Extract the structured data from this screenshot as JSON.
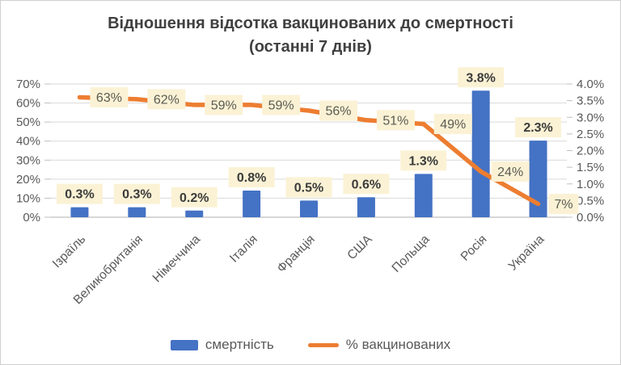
{
  "title": {
    "line1": "Відношення відсотка вакцинованих до смертності",
    "line2": "(останні 7 днів)"
  },
  "legend": {
    "bar_label": "смертність",
    "line_label": "% вакцинованих"
  },
  "colors": {
    "bar": "#4472C4",
    "line": "#ED7D31",
    "label_bg": "#FBF2D5",
    "grid": "#D9D9D9",
    "axis_line": "#BFBFBF",
    "tick_text": "#595959",
    "bar_label_text": "#3B3B3B",
    "line_label_text": "#5A5A52"
  },
  "chart_data": {
    "type": "combo-bar-line",
    "title": "Відношення відсотка вакцинованих до смертності (останні 7 днів)",
    "categories": [
      "Ізраїль",
      "Великобританія",
      "Німеччина",
      "Італія",
      "Франція",
      "США",
      "Польща",
      "Росія",
      "Україна"
    ],
    "series": [
      {
        "name": "смертність",
        "type": "bar",
        "axis": "right",
        "color": "#4472C4",
        "values": [
          0.3,
          0.3,
          0.2,
          0.8,
          0.5,
          0.6,
          1.3,
          3.8,
          2.3
        ],
        "labels": [
          "0.3%",
          "0.3%",
          "0.2%",
          "0.8%",
          "0.5%",
          "0.6%",
          "1.3%",
          "3.8%",
          "2.3%"
        ]
      },
      {
        "name": "% вакцинованих",
        "type": "line",
        "axis": "left",
        "color": "#ED7D31",
        "values": [
          63,
          62,
          59,
          59,
          56,
          51,
          49,
          24,
          7
        ],
        "labels": [
          "63%",
          "62%",
          "59%",
          "59%",
          "56%",
          "51%",
          "49%",
          "24%",
          "7%"
        ]
      }
    ],
    "left_axis": {
      "min": 0,
      "max": 70,
      "step": 10,
      "ticks": [
        "0%",
        "10%",
        "20%",
        "30%",
        "40%",
        "50%",
        "60%",
        "70%"
      ]
    },
    "right_axis": {
      "min": 0,
      "max": 4,
      "step": 0.5,
      "ticks": [
        "0.0%",
        "0.5%",
        "1.0%",
        "1.5%",
        "2.0%",
        "2.5%",
        "3.0%",
        "3.5%",
        "4.0%"
      ]
    },
    "grid": true,
    "legend_position": "bottom",
    "data_label_background": "#FBF2D5"
  }
}
